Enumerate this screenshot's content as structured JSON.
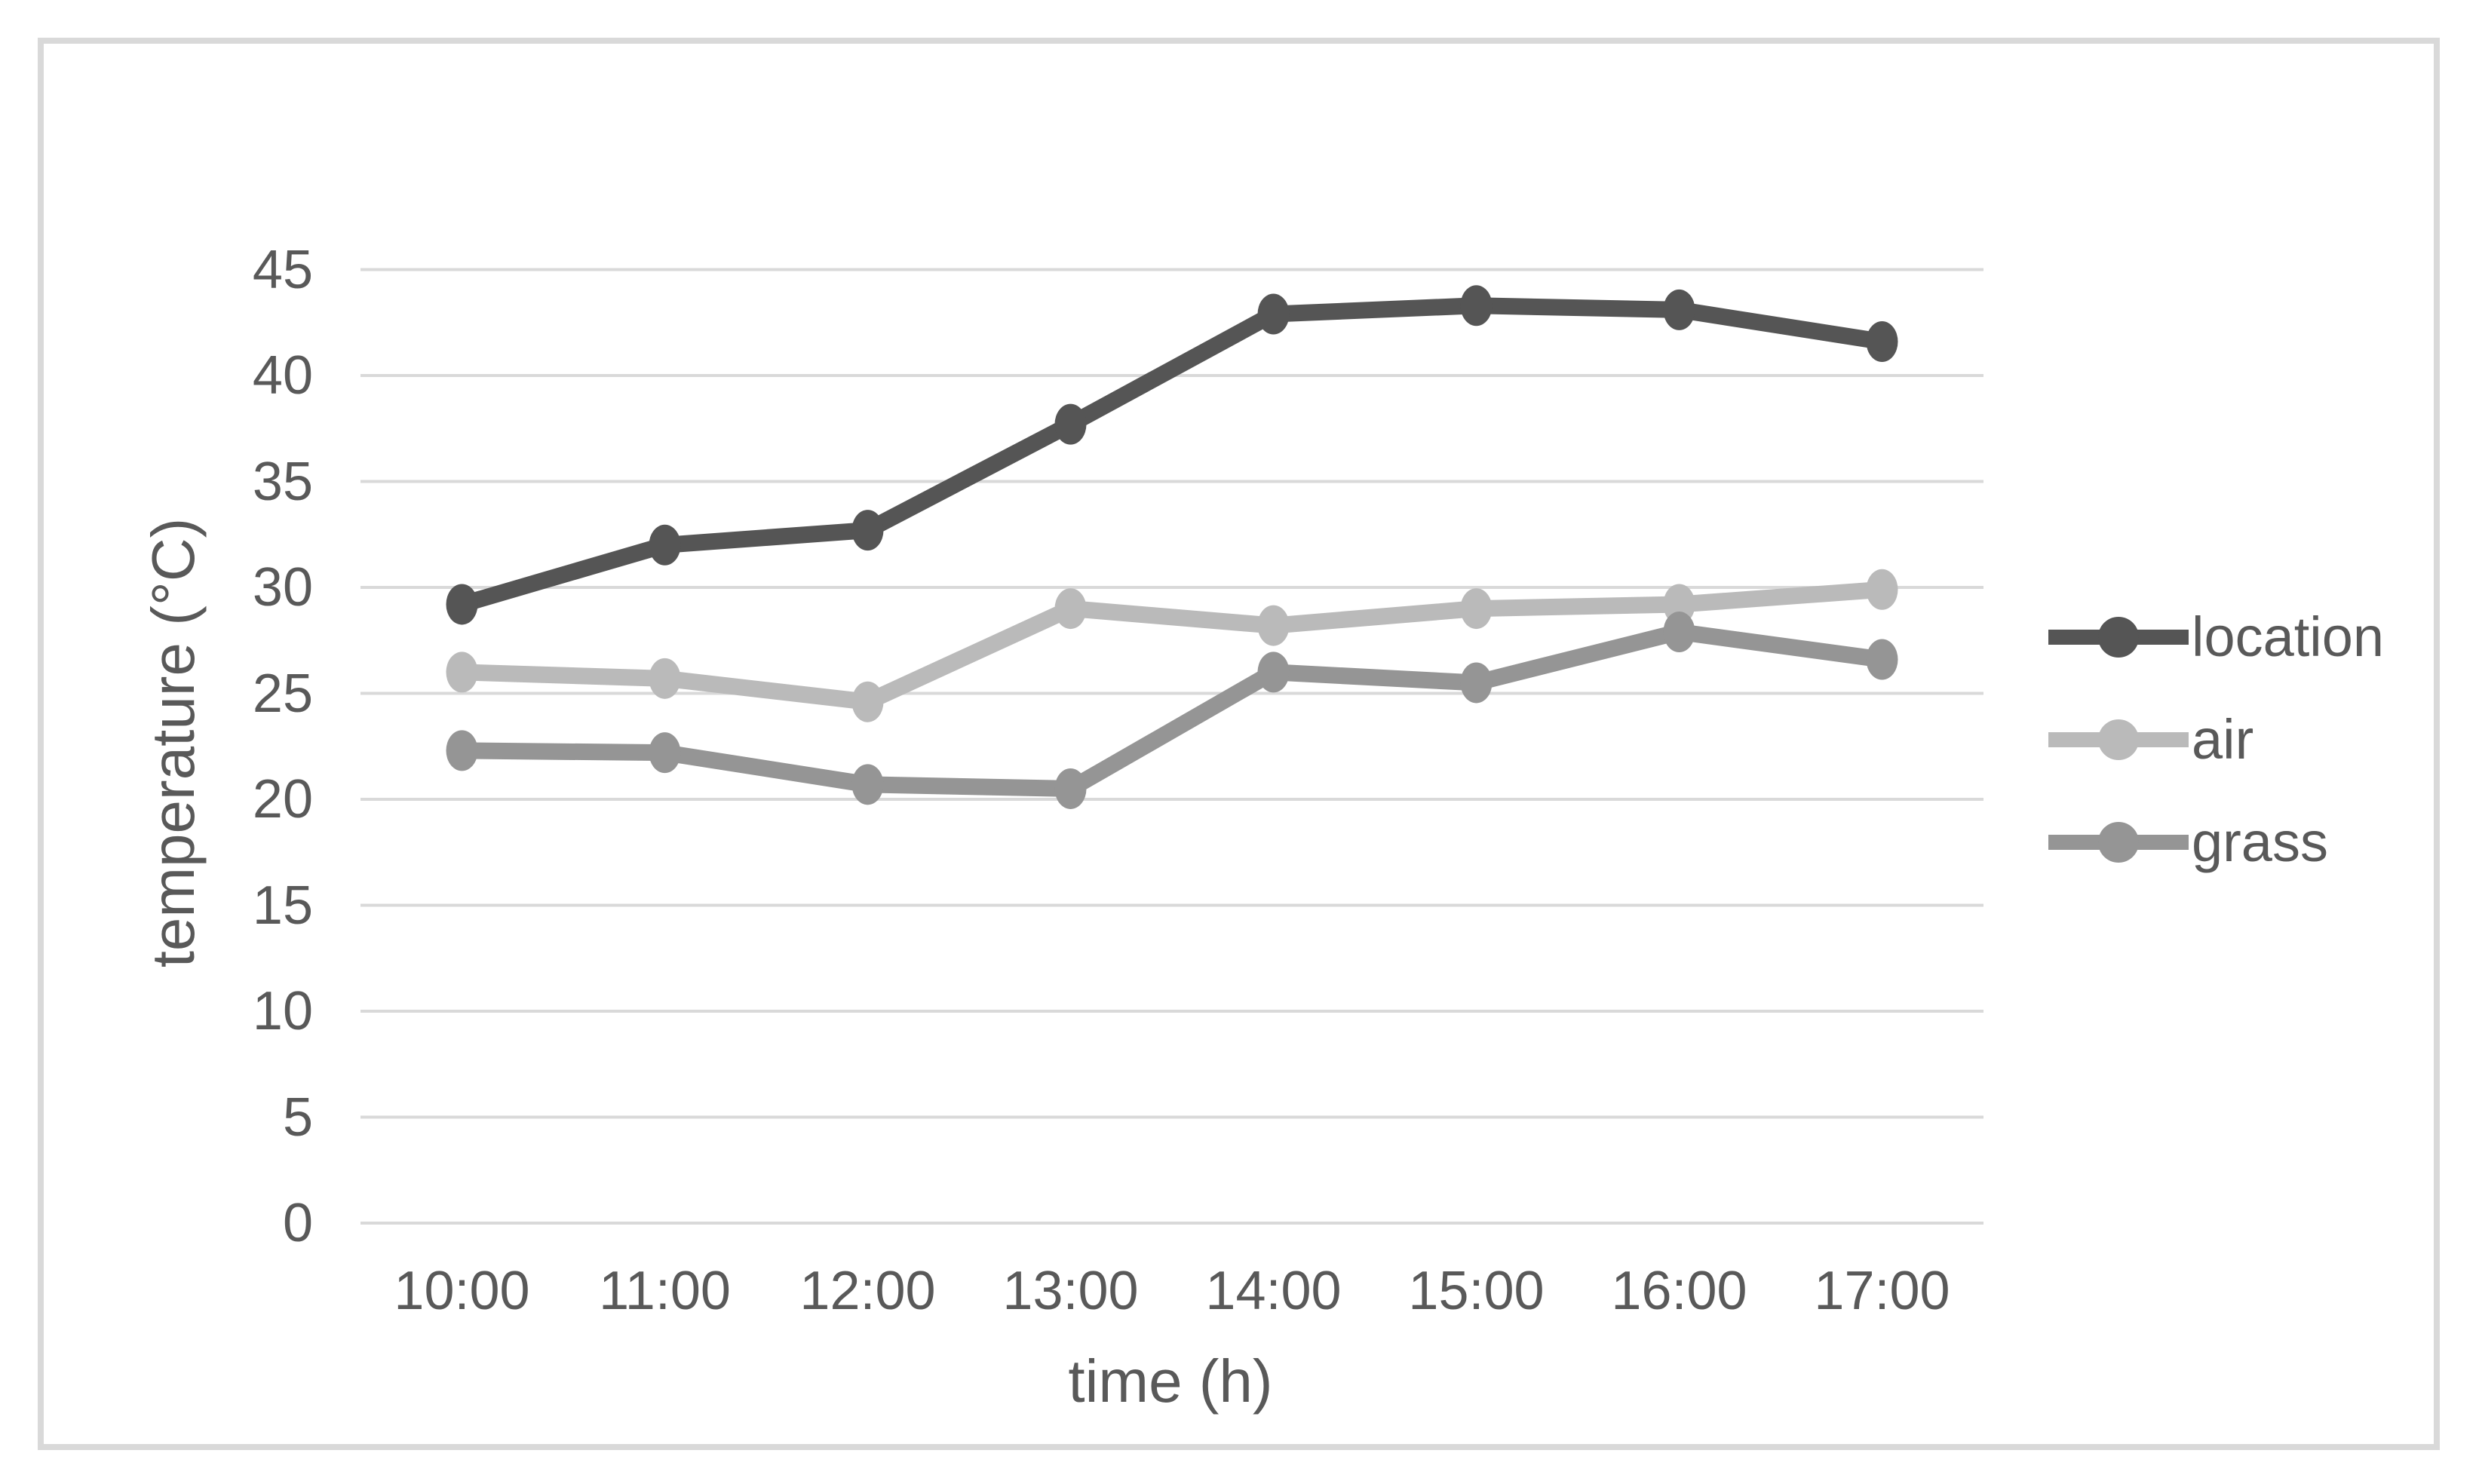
{
  "chart_data": {
    "type": "line",
    "title": "",
    "xlabel": "time (h)",
    "ylabel": "temperature (°C)",
    "categories": [
      "10:00",
      "11:00",
      "12:00",
      "13:00",
      "14:00",
      "15:00",
      "16:00",
      "17:00"
    ],
    "series": [
      {
        "name": "location",
        "color": "#555555",
        "values": [
          29.2,
          32.0,
          32.7,
          37.7,
          42.9,
          43.3,
          43.1,
          41.6
        ]
      },
      {
        "name": "air",
        "color": "#bababa",
        "values": [
          26.0,
          25.7,
          24.6,
          29.0,
          28.2,
          29.0,
          29.2,
          29.9
        ]
      },
      {
        "name": "grass",
        "color": "#959595",
        "values": [
          22.3,
          22.2,
          20.7,
          20.5,
          26.0,
          25.5,
          27.9,
          26.6
        ]
      }
    ],
    "ylim": [
      0,
      45
    ],
    "ytick_step": 5,
    "y_ticks": [
      "0",
      "5",
      "10",
      "15",
      "20",
      "25",
      "30",
      "35",
      "40",
      "45"
    ],
    "x_gridlines": false,
    "y_gridlines": true,
    "legend_position": "right",
    "marker": "circle",
    "colors": {
      "gridline": "#d9d9d9",
      "axis_text": "#595959",
      "frame_border": "#d9d9d9",
      "background": "#ffffff"
    }
  }
}
